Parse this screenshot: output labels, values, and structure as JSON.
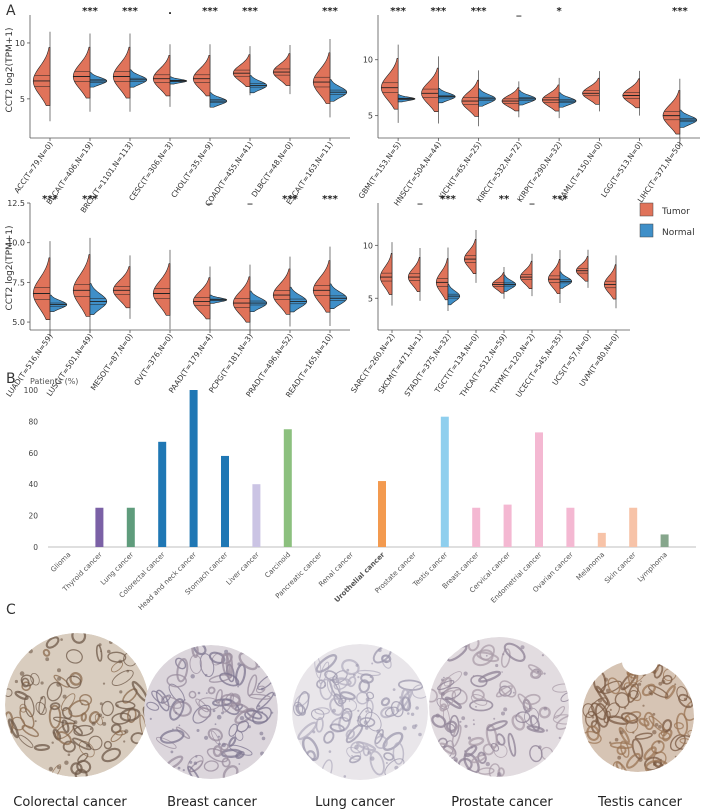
{
  "panel_labels": {
    "a": "A",
    "b": "B",
    "c": "C"
  },
  "colors": {
    "tumor": "#e0735a",
    "normal": "#3f8fc8",
    "axis": "#555555",
    "text": "#333333"
  },
  "legend": {
    "tumor": "Tumor",
    "normal": "Normal"
  },
  "panel_a_ylabel": "CCT2  log2(TPM+1)",
  "chart_data": [
    {
      "type": "violin",
      "panel": "A-top-left",
      "ylabel": "CCT2  log2(TPM+1)",
      "ylim": [
        1.5,
        12.5
      ],
      "yticks": [
        5,
        10
      ],
      "categories": [
        "ACC(T=79,N=0)",
        "BLCA(T=406,N=19)",
        "BRCA(T=1101,N=113)",
        "CESC(T=306,N=3)",
        "CHOL(T=35,N=9)",
        "COAD(T=455,N=41)",
        "DLBC(T=48,N=0)",
        "ESCA(T=163,N=11)"
      ],
      "significance": [
        "",
        "***",
        "***",
        ".",
        "***",
        "***",
        "",
        "***"
      ],
      "series": [
        {
          "name": "Tumor",
          "medians": [
            6.6,
            7.0,
            7.0,
            6.8,
            6.8,
            7.3,
            7.4,
            6.5
          ],
          "spreads": [
            4.0,
            3.5,
            3.5,
            2.8,
            2.8,
            2.2,
            2.2,
            3.5
          ]
        },
        {
          "name": "Normal",
          "medians": [
            null,
            6.6,
            6.7,
            6.6,
            4.8,
            6.2,
            null,
            5.6
          ],
          "spreads": [
            null,
            1.0,
            1.2,
            0.5,
            1.0,
            1.2,
            null,
            1.5
          ]
        }
      ]
    },
    {
      "type": "violin",
      "panel": "A-top-right",
      "ylim": [
        3.0,
        14.0
      ],
      "yticks": [
        5,
        10
      ],
      "categories": [
        "GBM(T=153,N=5)",
        "HNSC(T=504,N=44)",
        "KICH(T=65,N=25)",
        "KIRC(T=532,N=72)",
        "KIRP(T=290,N=32)",
        "LAML(T=150,N=0)",
        "LGG(T=513,N=0)",
        "LIHC(T=371,N=50)"
      ],
      "significance": [
        "***",
        "***",
        "***",
        "_",
        "*",
        "",
        "",
        "***"
      ],
      "series": [
        {
          "name": "Tumor",
          "medians": [
            7.5,
            7.0,
            6.3,
            6.3,
            6.4,
            7.0,
            6.8,
            5.0
          ],
          "spreads": [
            3.5,
            3.0,
            2.5,
            1.6,
            1.8,
            1.8,
            2.0,
            3.0
          ]
        },
        {
          "name": "Normal",
          "medians": [
            6.5,
            6.7,
            6.5,
            6.5,
            6.3,
            null,
            null,
            4.6
          ],
          "spreads": [
            0.5,
            1.0,
            1.2,
            1.0,
            1.0,
            null,
            null,
            1.2
          ]
        }
      ]
    },
    {
      "type": "violin",
      "panel": "A-bottom-left",
      "ylabel": "CCT2  log2(TPM+1)",
      "ylim": [
        4.5,
        12.5
      ],
      "yticks": [
        5.0,
        7.5,
        10.0,
        12.5
      ],
      "categories": [
        "LUAD(T=516,N=59)",
        "LUSC(T=501,N=49)",
        "MESO(T=87,N=0)",
        "OV(T=376,N=0)",
        "PAAD(T=179,N=4)",
        "PCPG(T=181,N=3)",
        "PRAD(T=496,N=52)",
        "READ(T=165,N=10)"
      ],
      "significance": [
        "***",
        "***",
        "",
        "",
        "_",
        "_",
        "***",
        "***"
      ],
      "series": [
        {
          "name": "Tumor",
          "medians": [
            6.8,
            7.0,
            7.0,
            6.8,
            6.3,
            6.2,
            6.7,
            7.0
          ],
          "spreads": [
            3.0,
            3.0,
            2.0,
            2.5,
            2.0,
            2.2,
            2.2,
            2.5
          ]
        },
        {
          "name": "Normal",
          "medians": [
            6.1,
            6.3,
            null,
            null,
            6.4,
            6.2,
            6.3,
            6.5
          ],
          "spreads": [
            0.8,
            1.5,
            null,
            null,
            0.4,
            1.0,
            1.2,
            1.2
          ]
        }
      ]
    },
    {
      "type": "violin",
      "panel": "A-bottom-right",
      "ylim": [
        2.0,
        14.0
      ],
      "yticks": [
        5,
        10
      ],
      "categories": [
        "SARC(T=260,N=2)",
        "SKCM(T=471,N=1)",
        "STAD(T=375,N=32)",
        "TGCT(T=134,N=0)",
        "THCA(T=512,N=59)",
        "THYM(T=120,N=2)",
        "UCEC(T=545,N=35)",
        "UCS(T=57,N=0)",
        "UVM(T=80,N=0)"
      ],
      "significance": [
        "",
        "_",
        "***",
        "",
        "**",
        "_",
        "***",
        "",
        ""
      ],
      "series": [
        {
          "name": "Tumor",
          "medians": [
            7.0,
            7.0,
            6.5,
            8.7,
            6.3,
            7.0,
            6.8,
            7.6,
            6.3
          ],
          "spreads": [
            3.0,
            2.5,
            3.0,
            2.5,
            1.5,
            2.0,
            2.5,
            1.8,
            2.5
          ]
        },
        {
          "name": "Normal",
          "medians": [
            null,
            null,
            5.2,
            null,
            6.3,
            null,
            6.6,
            null,
            null
          ],
          "spreads": [
            null,
            null,
            1.5,
            null,
            1.2,
            null,
            1.2,
            null,
            null
          ]
        }
      ]
    },
    {
      "type": "bar",
      "panel": "B",
      "title": "Patients (%)",
      "ylim": [
        0,
        100
      ],
      "yticks": [
        0,
        20,
        40,
        60,
        80,
        100
      ],
      "categories": [
        "Glioma",
        "Thyroid cancer",
        "Lung cancer",
        "Colorectal cancer",
        "Head and neck cancer",
        "Stomach cancer",
        "Liver cancer",
        "Carcinoid",
        "Pancreatic cancer",
        "Renal cancer",
        "Urothelial cancer",
        "Prostate cancer",
        "Testis cancer",
        "Breast cancer",
        "Cervical cancer",
        "Endometrial cancer",
        "Ovarian cancer",
        "Melanoma",
        "Skin cancer",
        "Lymphoma"
      ],
      "values": [
        0,
        25,
        25,
        67,
        100,
        58,
        40,
        75,
        0,
        0,
        42,
        0,
        83,
        25,
        27,
        73,
        25,
        9,
        25,
        8
      ],
      "colors": [
        "#7b61a6",
        "#7b61a6",
        "#5f9c7c",
        "#1f77b4",
        "#1f77b4",
        "#1f77b4",
        "#cbc4e4",
        "#8cc07e",
        "#8cc07e",
        "#8cc07e",
        "#f39a4f",
        "#8fcfee",
        "#8fcfee",
        "#f4b8d2",
        "#f4b8d2",
        "#f4b8d2",
        "#f4b8d2",
        "#f7c3a8",
        "#f7c3a8",
        "#86a68c"
      ],
      "bold_category": "Urothelial cancer"
    }
  ],
  "tissue_labels": [
    "Colorectal cancer",
    "Breast cancer",
    "Lung cancer",
    "Prostate cancer",
    "Testis cancer"
  ],
  "tissue_colors": [
    {
      "base": "#d9cdbf",
      "stain": "#8a6a4e",
      "dark": "#6e5848"
    },
    {
      "base": "#dcd6dc",
      "stain": "#9a8c9e",
      "dark": "#7d7590"
    },
    {
      "base": "#e9e6ea",
      "stain": "#b3afc0",
      "dark": "#9c98ad"
    },
    {
      "base": "#e2dce0",
      "stain": "#ab9eaa",
      "dark": "#8e8195"
    },
    {
      "base": "#d6c4b4",
      "stain": "#9b7656",
      "dark": "#7a5a43"
    }
  ]
}
